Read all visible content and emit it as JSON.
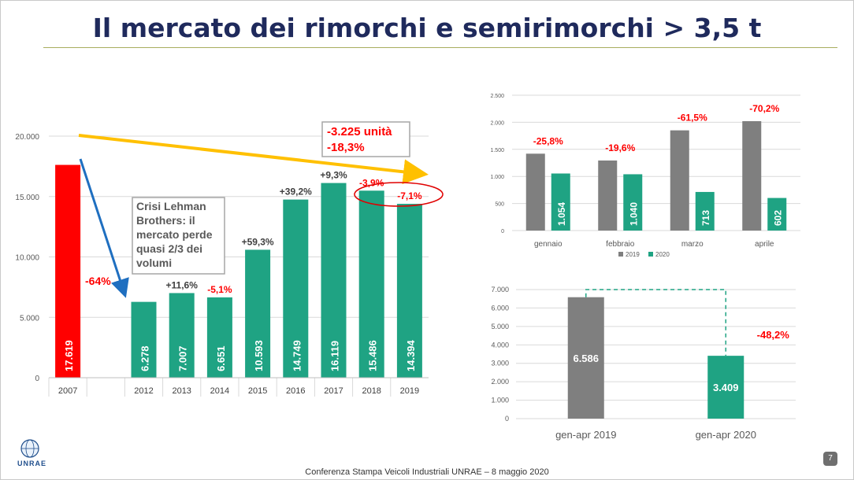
{
  "slide": {
    "title": "Il mercato dei rimorchi e semirimorchi > 3,5 t",
    "footer": "Conferenza Stampa Veicoli Industriali UNRAE – 8 maggio 2020",
    "page_number": "7",
    "logo_text": "UNRAE",
    "colors": {
      "title": "#1f2a5c",
      "green": "#1fa383",
      "red": "#ff0000",
      "grey": "#7f7f7f",
      "arrow_yellow": "#ffc000",
      "arrow_blue": "#1f6fc0"
    }
  },
  "chart_data": [
    {
      "type": "bar",
      "categories": [
        "2007",
        "",
        "2012",
        "2013",
        "2014",
        "2015",
        "2016",
        "2017",
        "2018",
        "2019"
      ],
      "values": [
        17619,
        null,
        6278,
        7007,
        6651,
        10593,
        14749,
        16119,
        15486,
        14394
      ],
      "value_labels": [
        "17.619",
        "",
        "6.278",
        "7.007",
        "6.651",
        "10.593",
        "14.749",
        "16.119",
        "15.486",
        "14.394"
      ],
      "bar_colors": [
        "#ff0000",
        "",
        "#1fa383",
        "#1fa383",
        "#1fa383",
        "#1fa383",
        "#1fa383",
        "#1fa383",
        "#1fa383",
        "#1fa383"
      ],
      "changes": [
        "",
        "",
        "",
        "+11,6%",
        "-5,1%",
        "+59,3%",
        "+39,2%",
        "+9,3%",
        "-3,9%",
        "-7,1%"
      ],
      "change_colors": [
        "",
        "",
        "",
        "#404040",
        "#ff0000",
        "#404040",
        "#404040",
        "#404040",
        "#ff0000",
        "#ff0000"
      ],
      "ylim": [
        0,
        20000
      ],
      "yticks": [
        0,
        5000,
        10000,
        15000,
        20000
      ],
      "ytick_labels": [
        "0",
        "5.000",
        "10.000",
        "15.000",
        "20.000"
      ],
      "annotations": {
        "drop": "-64%",
        "crisis_box": [
          "Crisi Lehman",
          "Brothers: il",
          "mercato perde",
          "quasi 2/3 dei",
          "volumi"
        ],
        "trend_box": [
          "-3.225 unità",
          "-18,3%"
        ]
      }
    },
    {
      "type": "bar",
      "categories": [
        "gennaio",
        "febbraio",
        "marzo",
        "aprile"
      ],
      "series": [
        {
          "name": "2019",
          "color": "#7f7f7f",
          "values": [
            1420,
            1294,
            1851,
            2021
          ]
        },
        {
          "name": "2020",
          "color": "#1fa383",
          "values": [
            1054,
            1040,
            713,
            602
          ],
          "value_labels": [
            "1.054",
            "1.040",
            "713",
            "602"
          ]
        }
      ],
      "changes": [
        "-25,8%",
        "-19,6%",
        "-61,5%",
        "-70,2%"
      ],
      "ylim": [
        0,
        2500
      ],
      "yticks": [
        0,
        500,
        1000,
        1500,
        2000,
        2500
      ],
      "ytick_labels": [
        "0",
        "500",
        "1.000",
        "1.500",
        "2.000",
        "2.500"
      ],
      "legend_position": "bottom"
    },
    {
      "type": "bar",
      "categories": [
        "gen-apr 2019",
        "gen-apr 2020"
      ],
      "values": [
        6586,
        3409
      ],
      "value_labels": [
        "6.586",
        "3.409"
      ],
      "bar_colors": [
        "#7f7f7f",
        "#1fa383"
      ],
      "change": "-48,2%",
      "ylim": [
        0,
        7000
      ],
      "yticks": [
        0,
        1000,
        2000,
        3000,
        4000,
        5000,
        6000,
        7000
      ],
      "ytick_labels": [
        "0",
        "1.000",
        "2.000",
        "3.000",
        "4.000",
        "5.000",
        "6.000",
        "7.000"
      ]
    }
  ]
}
